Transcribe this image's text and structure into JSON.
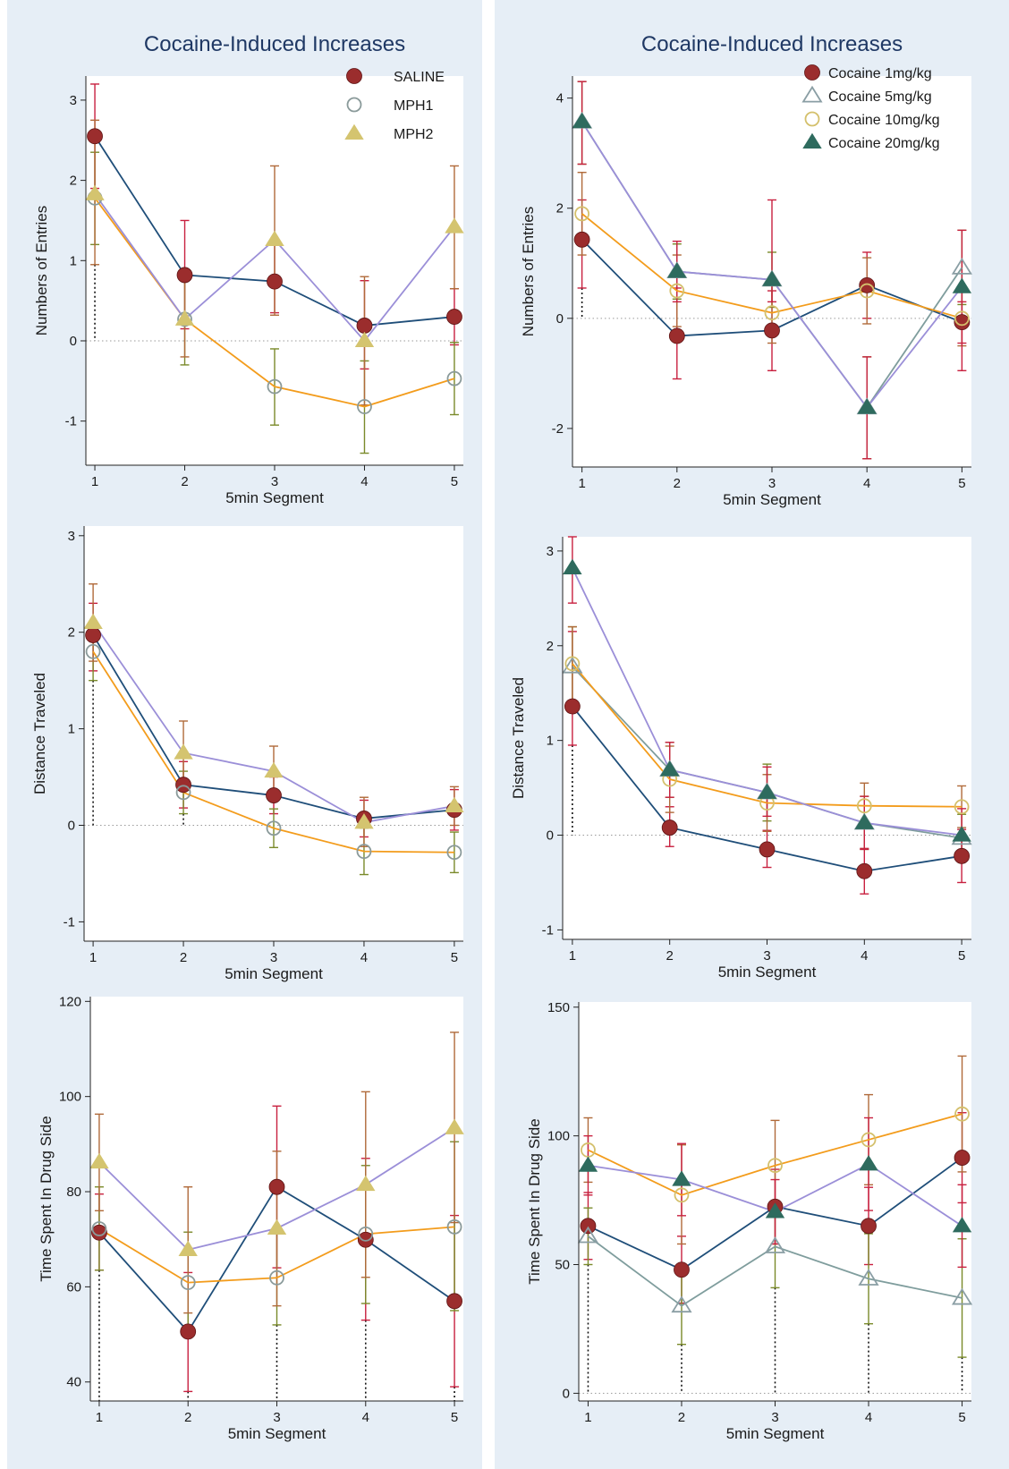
{
  "colors": {
    "bg": "#e6eef6",
    "navy": "#1f4e79",
    "lavender": "#9b8fd8",
    "orange": "#f39c1c",
    "seagray": "#7f9d9d",
    "saline_marker": "#9b2d2d",
    "mph1_marker": "#8a9a9a",
    "mph2_marker": "#d4c46f",
    "c1_marker": "#9b2d2d",
    "c5_marker": "#8a9ea4",
    "c10_marker": "#d4c06c",
    "c20_marker": "#2e6b5e",
    "err_red": "#c8203f",
    "err_olive": "#7a8a2a",
    "err_brown": "#b06a3a"
  },
  "chart_data": [
    {
      "id": "left-entries",
      "type": "line",
      "title": "Cocaine-Induced Increases",
      "xlabel": "5min Segment",
      "ylabel": "Numbers of Entries",
      "x": [
        1,
        2,
        3,
        4,
        5
      ],
      "xlim": [
        0.9,
        5.1
      ],
      "ylim": [
        -1.55,
        3.3
      ],
      "yticks": [
        -1,
        0,
        1,
        2,
        3
      ],
      "zero_line": true,
      "legend": [
        {
          "label": "SALINE",
          "marker": "circle-filled",
          "color": "saline_marker"
        },
        {
          "label": "MPH1",
          "marker": "circle-open",
          "color": "mph1_marker"
        },
        {
          "label": "MPH2",
          "marker": "triangle-filled",
          "color": "mph2_marker"
        }
      ],
      "series": [
        {
          "name": "SALINE",
          "line": "navy",
          "marker": "circle-filled",
          "mcolor": "saline_marker",
          "values": [
            2.55,
            0.82,
            0.74,
            0.19,
            0.3
          ],
          "ci": [
            [
              1.9,
              3.2
            ],
            [
              0.15,
              1.5
            ],
            [
              0.35,
              1.2
            ],
            [
              -0.35,
              0.75
            ],
            [
              -0.05,
              0.65
            ]
          ]
        },
        {
          "name": "MPH1",
          "line": "orange",
          "marker": "circle-open",
          "mcolor": "mph1_marker",
          "values": [
            1.78,
            0.27,
            -0.57,
            -0.82,
            -0.47
          ],
          "ci": [
            [
              1.2,
              2.35
            ],
            [
              -0.3,
              0.8
            ],
            [
              -1.05,
              -0.1
            ],
            [
              -1.4,
              -0.25
            ],
            [
              -0.92,
              -0.02
            ]
          ]
        },
        {
          "name": "MPH2",
          "line": "lavender",
          "marker": "triangle-filled",
          "mcolor": "mph2_marker",
          "values": [
            1.83,
            0.27,
            1.26,
            0.0,
            1.42
          ],
          "ci": [
            [
              0.95,
              2.75
            ],
            [
              -0.2,
              0.75
            ],
            [
              0.32,
              2.18
            ],
            [
              -0.8,
              0.8
            ],
            [
              0.65,
              2.18
            ]
          ]
        }
      ]
    },
    {
      "id": "right-entries",
      "type": "line",
      "title": "Cocaine-Induced Increases",
      "xlabel": "5min Segment",
      "ylabel": "Numbers of Entries",
      "x": [
        1,
        2,
        3,
        4,
        5
      ],
      "xlim": [
        0.9,
        5.1
      ],
      "ylim": [
        -2.7,
        4.4
      ],
      "yticks": [
        -2,
        0,
        2,
        4
      ],
      "zero_line": true,
      "legend": [
        {
          "label": "Cocaine 1mg/kg",
          "marker": "circle-filled",
          "color": "c1_marker"
        },
        {
          "label": "Cocaine 5mg/kg",
          "marker": "triangle-open",
          "color": "c5_marker"
        },
        {
          "label": "Cocaine 10mg/kg",
          "marker": "circle-open",
          "color": "c10_marker"
        },
        {
          "label": "Cocaine 20mg/kg",
          "marker": "triangle-filled",
          "color": "c20_marker"
        }
      ],
      "series": [
        {
          "name": "Cocaine 1mg/kg",
          "line": "navy",
          "marker": "circle-filled",
          "mcolor": "c1_marker",
          "values": [
            1.43,
            -0.32,
            -0.22,
            0.6,
            -0.07
          ],
          "ci": [
            [
              0.55,
              2.15
            ],
            [
              -1.1,
              0.55
            ],
            [
              -0.95,
              0.5
            ],
            [
              0.0,
              1.2
            ],
            [
              -0.45,
              0.3
            ]
          ]
        },
        {
          "name": "Cocaine 5mg/kg",
          "line": "seagray",
          "marker": "triangle-open",
          "mcolor": "c5_marker",
          "values": [
            3.57,
            0.85,
            0.7,
            -1.62,
            0.92
          ],
          "ci": [
            [
              2.8,
              4.3
            ],
            [
              0.35,
              1.35
            ],
            [
              0.2,
              1.2
            ],
            [
              -2.55,
              -0.7
            ],
            [
              0.25,
              1.6
            ]
          ]
        },
        {
          "name": "Cocaine 10mg/kg",
          "line": "orange",
          "marker": "circle-open",
          "mcolor": "c10_marker",
          "values": [
            1.9,
            0.5,
            0.1,
            0.5,
            0.0
          ],
          "ci": [
            [
              1.15,
              2.65
            ],
            [
              -0.15,
              1.15
            ],
            [
              -0.45,
              0.6
            ],
            [
              -0.1,
              1.1
            ],
            [
              -0.5,
              0.5
            ]
          ]
        },
        {
          "name": "Cocaine 20mg/kg",
          "line": "lavender",
          "marker": "triangle-filled",
          "mcolor": "c20_marker",
          "values": [
            3.57,
            0.85,
            0.7,
            -1.62,
            0.57
          ],
          "ci": [
            [
              2.8,
              4.3
            ],
            [
              0.3,
              1.4
            ],
            [
              0.3,
              2.15
            ],
            [
              -2.55,
              -0.7
            ],
            [
              -0.95,
              1.6
            ]
          ]
        }
      ]
    },
    {
      "id": "left-distance",
      "type": "line",
      "title": "",
      "xlabel": "5min Segment",
      "ylabel": "Distance Traveled",
      "x": [
        1,
        2,
        3,
        4,
        5
      ],
      "xlim": [
        0.9,
        5.1
      ],
      "ylim": [
        -1.2,
        3.1
      ],
      "yticks": [
        -1,
        0,
        1,
        2,
        3
      ],
      "zero_line": true,
      "legend": [],
      "series": [
        {
          "name": "SALINE",
          "line": "navy",
          "marker": "circle-filled",
          "mcolor": "saline_marker",
          "values": [
            1.97,
            0.42,
            0.31,
            0.07,
            0.16
          ],
          "ci": [
            [
              1.6,
              2.3
            ],
            [
              0.18,
              0.66
            ],
            [
              0.12,
              0.5
            ],
            [
              -0.12,
              0.26
            ],
            [
              -0.05,
              0.37
            ]
          ]
        },
        {
          "name": "MPH1",
          "line": "orange",
          "marker": "circle-open",
          "mcolor": "mph1_marker",
          "values": [
            1.8,
            0.34,
            -0.03,
            -0.27,
            -0.28
          ],
          "ci": [
            [
              1.5,
              2.1
            ],
            [
              0.12,
              0.56
            ],
            [
              -0.23,
              0.17
            ],
            [
              -0.51,
              -0.03
            ],
            [
              -0.49,
              -0.07
            ]
          ]
        },
        {
          "name": "MPH2",
          "line": "lavender",
          "marker": "triangle-filled",
          "mcolor": "mph2_marker",
          "values": [
            2.1,
            0.75,
            0.56,
            0.03,
            0.2
          ],
          "ci": [
            [
              1.7,
              2.5
            ],
            [
              0.42,
              1.08
            ],
            [
              0.3,
              0.82
            ],
            [
              -0.22,
              0.29
            ],
            [
              0.0,
              0.4
            ]
          ]
        }
      ]
    },
    {
      "id": "right-distance",
      "type": "line",
      "title": "",
      "xlabel": "5min Segment",
      "ylabel": "Distance Traveled",
      "x": [
        1,
        2,
        3,
        4,
        5
      ],
      "xlim": [
        0.9,
        5.1
      ],
      "ylim": [
        -1.1,
        3.15
      ],
      "yticks": [
        -1,
        0,
        1,
        2,
        3
      ],
      "zero_line": true,
      "legend": [],
      "series": [
        {
          "name": "Cocaine 1mg/kg",
          "line": "navy",
          "marker": "circle-filled",
          "mcolor": "c1_marker",
          "values": [
            1.36,
            0.08,
            -0.15,
            -0.38,
            -0.22
          ],
          "ci": [
            [
              0.95,
              2.15
            ],
            [
              -0.12,
              0.3
            ],
            [
              -0.34,
              0.05
            ],
            [
              -0.62,
              -0.14
            ],
            [
              -0.5,
              0.06
            ]
          ]
        },
        {
          "name": "Cocaine 5mg/kg",
          "line": "seagray",
          "marker": "triangle-open",
          "mcolor": "c5_marker",
          "values": [
            1.78,
            0.69,
            0.45,
            0.13,
            -0.03
          ],
          "ci": [
            [
              1.35,
              2.2
            ],
            [
              0.4,
              0.98
            ],
            [
              0.15,
              0.75
            ],
            [
              -0.15,
              0.41
            ],
            [
              -0.28,
              0.22
            ]
          ]
        },
        {
          "name": "Cocaine 10mg/kg",
          "line": "orange",
          "marker": "circle-open",
          "mcolor": "c10_marker",
          "values": [
            1.81,
            0.59,
            0.34,
            0.31,
            0.3
          ],
          "ci": [
            [
              1.4,
              2.2
            ],
            [
              0.24,
              0.94
            ],
            [
              0.04,
              0.64
            ],
            [
              0.07,
              0.55
            ],
            [
              0.08,
              0.52
            ]
          ]
        },
        {
          "name": "Cocaine 20mg/kg",
          "line": "lavender",
          "marker": "triangle-filled",
          "mcolor": "c20_marker",
          "values": [
            2.82,
            0.69,
            0.45,
            0.13,
            0.0
          ],
          "ci": [
            [
              2.45,
              3.15
            ],
            [
              0.4,
              0.98
            ],
            [
              0.2,
              0.72
            ],
            [
              -0.15,
              0.41
            ],
            [
              -0.28,
              0.28
            ]
          ]
        }
      ]
    },
    {
      "id": "left-time",
      "type": "line",
      "title": "",
      "xlabel": "5min Segment",
      "ylabel": "Time Spent In Drug Side",
      "x": [
        1,
        2,
        3,
        4,
        5
      ],
      "xlim": [
        0.9,
        5.1
      ],
      "ylim": [
        36,
        121
      ],
      "yticks": [
        40,
        60,
        80,
        100,
        120
      ],
      "zero_line": false,
      "legend": [],
      "series": [
        {
          "name": "SALINE",
          "line": "navy",
          "marker": "circle-filled",
          "mcolor": "saline_marker",
          "values": [
            71.4,
            50.6,
            81.0,
            69.9,
            57.0
          ],
          "ci": [
            [
              63.5,
              79.5
            ],
            [
              38.0,
              63.0
            ],
            [
              64.0,
              98.0
            ],
            [
              53.0,
              87.0
            ],
            [
              39.0,
              75.0
            ]
          ]
        },
        {
          "name": "MPH1",
          "line": "orange",
          "marker": "circle-open",
          "mcolor": "mph1_marker",
          "values": [
            72.2,
            60.9,
            61.9,
            71.1,
            72.6
          ],
          "ci": [
            [
              63.5,
              81.0
            ],
            [
              50.0,
              71.5
            ],
            [
              52.0,
              72.0
            ],
            [
              56.5,
              85.5
            ],
            [
              55.0,
              90.5
            ]
          ]
        },
        {
          "name": "MPH2",
          "line": "lavender",
          "marker": "triangle-filled",
          "mcolor": "mph2_marker",
          "values": [
            86.2,
            67.8,
            72.3,
            81.5,
            93.4
          ],
          "ci": [
            [
              76.0,
              96.3
            ],
            [
              54.5,
              81.0
            ],
            [
              56.0,
              88.5
            ],
            [
              62.0,
              101.0
            ],
            [
              73.5,
              113.5
            ]
          ]
        }
      ]
    },
    {
      "id": "right-time",
      "type": "line",
      "title": "",
      "xlabel": "5min Segment",
      "ylabel": "Time Spent In Drug Side",
      "x": [
        1,
        2,
        3,
        4,
        5
      ],
      "xlim": [
        0.9,
        5.1
      ],
      "ylim": [
        -3,
        152
      ],
      "yticks": [
        0,
        50,
        100,
        150
      ],
      "zero_line": true,
      "legend": [],
      "series": [
        {
          "name": "Cocaine 1mg/kg",
          "line": "navy",
          "marker": "circle-filled",
          "mcolor": "c1_marker",
          "values": [
            65.0,
            48.0,
            72.5,
            65.0,
            91.5
          ],
          "ci": [
            [
              52.0,
              78.0
            ],
            [
              35.0,
              61.0
            ],
            [
              58.0,
              87.0
            ],
            [
              50.0,
              80.0
            ],
            [
              74.0,
              109.0
            ]
          ]
        },
        {
          "name": "Cocaine 5mg/kg",
          "line": "seagray",
          "marker": "triangle-open",
          "mcolor": "c5_marker",
          "values": [
            61.0,
            34.0,
            57.0,
            44.5,
            37.0
          ],
          "ci": [
            [
              50.0,
              72.0
            ],
            [
              19.0,
              49.0
            ],
            [
              41.0,
              73.0
            ],
            [
              27.0,
              62.0
            ],
            [
              14.0,
              60.0
            ]
          ]
        },
        {
          "name": "Cocaine 10mg/kg",
          "line": "orange",
          "marker": "circle-open",
          "mcolor": "c10_marker",
          "values": [
            94.5,
            77.0,
            88.5,
            98.5,
            108.5
          ],
          "ci": [
            [
              82.0,
              107.0
            ],
            [
              58.0,
              96.5
            ],
            [
              71.0,
              106.0
            ],
            [
              81.0,
              116.0
            ],
            [
              86.0,
              131.0
            ]
          ]
        },
        {
          "name": "Cocaine 20mg/kg",
          "line": "lavender",
          "marker": "triangle-filled",
          "mcolor": "c20_marker",
          "values": [
            88.5,
            83.0,
            70.5,
            89.0,
            65.0
          ],
          "ci": [
            [
              77.0,
              100.0
            ],
            [
              69.0,
              97.0
            ],
            [
              58.0,
              83.0
            ],
            [
              71.0,
              107.0
            ],
            [
              49.0,
              81.0
            ]
          ]
        }
      ]
    }
  ]
}
